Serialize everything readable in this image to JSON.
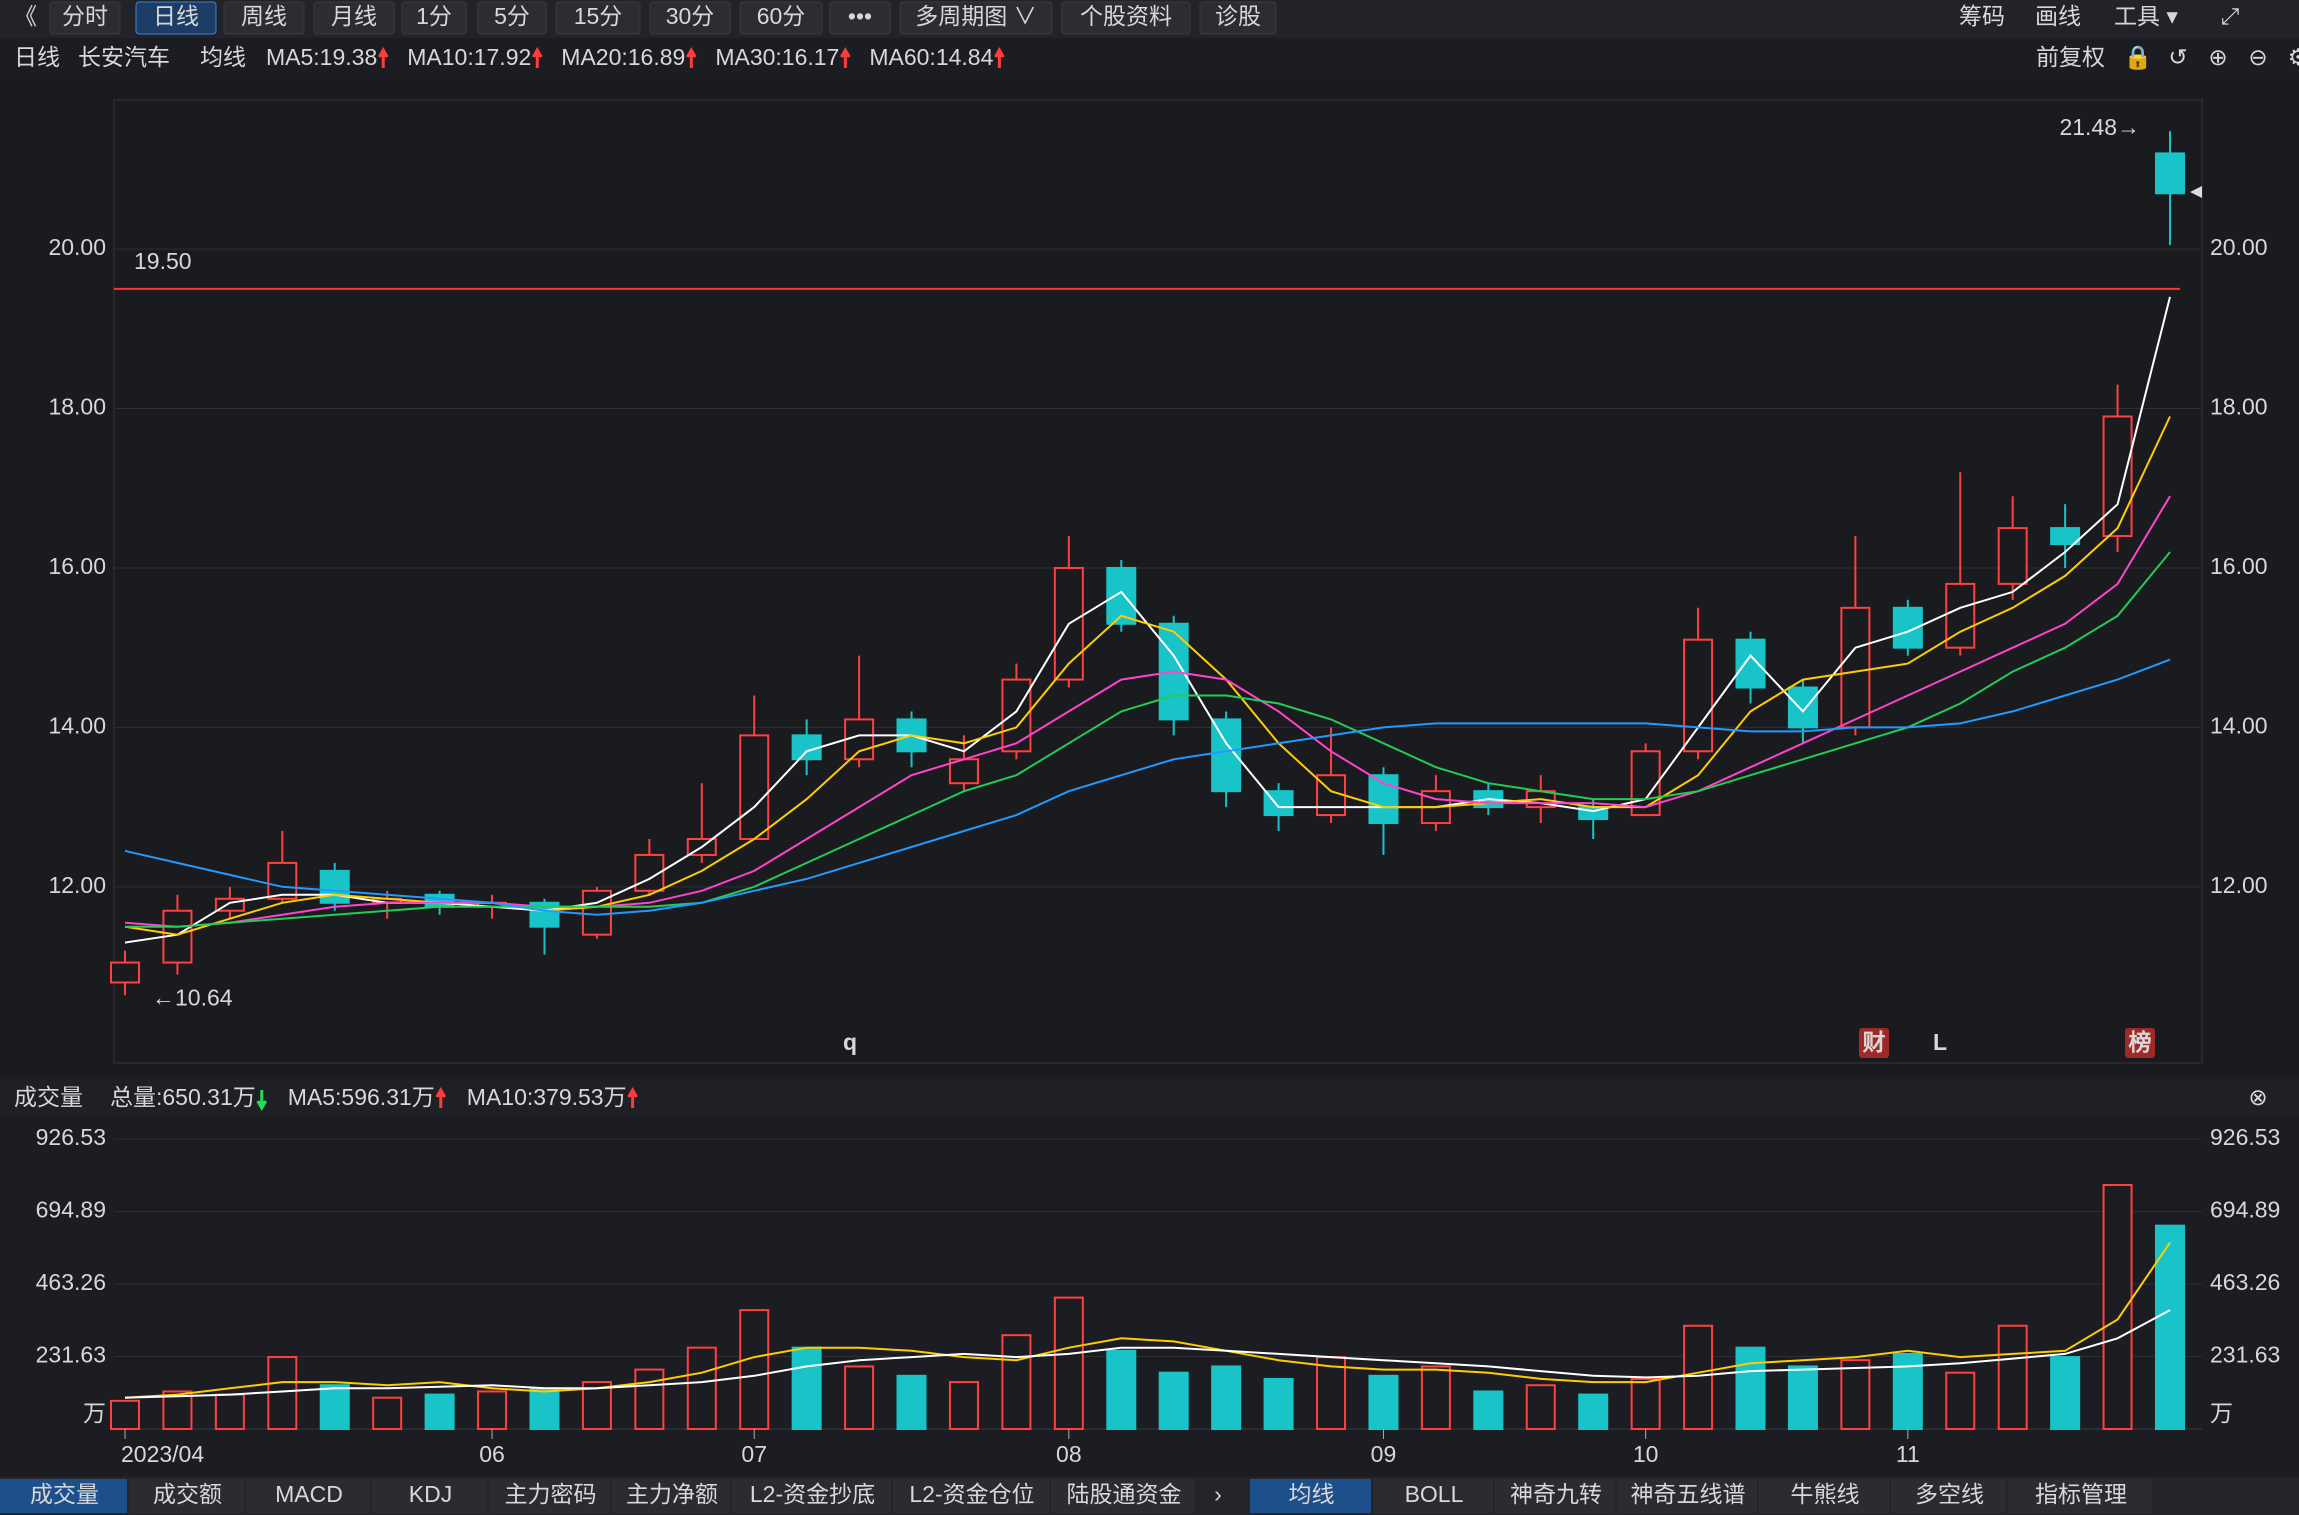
{
  "toolbar": {
    "buttons": [
      "《",
      "分时",
      "日线",
      "周线",
      "月线",
      "1分",
      "5分",
      "15分",
      "30分",
      "60分",
      "•••",
      "多周期图 ∨",
      "个股资料",
      "诊股"
    ],
    "right": [
      "筹码",
      "画线",
      "工具 ▾"
    ]
  },
  "header": {
    "period": "日线",
    "name": "长安汽车",
    "ma_label": "均线",
    "ma_items": [
      "MA5:19.38",
      "MA10:17.92",
      "MA20:16.89",
      "MA30:16.17",
      "MA60:14.84"
    ],
    "adjust": "前复权"
  },
  "chart_data": [
    {
      "type": "candlestick",
      "up_color": "#ff4040",
      "down_color": "#18c4c8",
      "ohlc": [
        [
          10.8,
          11.2,
          10.64,
          11.05
        ],
        [
          11.05,
          11.9,
          10.9,
          11.7
        ],
        [
          11.7,
          12.0,
          11.6,
          11.85
        ],
        [
          11.85,
          12.7,
          11.8,
          12.3
        ],
        [
          12.2,
          12.3,
          11.7,
          11.8
        ],
        [
          11.8,
          11.95,
          11.6,
          11.85
        ],
        [
          11.9,
          11.95,
          11.65,
          11.75
        ],
        [
          11.75,
          11.9,
          11.6,
          11.8
        ],
        [
          11.8,
          11.85,
          11.15,
          11.5
        ],
        [
          11.4,
          12.0,
          11.35,
          11.95
        ],
        [
          11.95,
          12.6,
          11.9,
          12.4
        ],
        [
          12.4,
          13.3,
          12.3,
          12.6
        ],
        [
          12.6,
          14.4,
          12.6,
          13.9
        ],
        [
          13.9,
          14.1,
          13.4,
          13.6
        ],
        [
          13.6,
          14.9,
          13.5,
          14.1
        ],
        [
          14.1,
          14.2,
          13.5,
          13.7
        ],
        [
          13.3,
          13.9,
          13.2,
          13.6
        ],
        [
          13.7,
          14.8,
          13.6,
          14.6
        ],
        [
          14.6,
          16.4,
          14.5,
          16.0
        ],
        [
          16.0,
          16.1,
          15.2,
          15.3
        ],
        [
          15.3,
          15.4,
          13.9,
          14.1
        ],
        [
          14.1,
          14.2,
          13.0,
          13.2
        ],
        [
          13.2,
          13.3,
          12.7,
          12.9
        ],
        [
          12.9,
          14.0,
          12.8,
          13.4
        ],
        [
          13.4,
          13.5,
          12.4,
          12.8
        ],
        [
          12.8,
          13.4,
          12.7,
          13.2
        ],
        [
          13.2,
          13.3,
          12.9,
          13.0
        ],
        [
          13.0,
          13.4,
          12.8,
          13.2
        ],
        [
          13.0,
          13.1,
          12.6,
          12.85
        ],
        [
          12.9,
          13.8,
          12.9,
          13.7
        ],
        [
          13.7,
          15.5,
          13.6,
          15.1
        ],
        [
          15.1,
          15.2,
          14.3,
          14.5
        ],
        [
          14.5,
          14.6,
          13.8,
          14.0
        ],
        [
          14.0,
          16.4,
          13.9,
          15.5
        ],
        [
          15.5,
          15.6,
          14.9,
          15.0
        ],
        [
          15.0,
          17.2,
          14.9,
          15.8
        ],
        [
          15.8,
          16.9,
          15.6,
          16.5
        ],
        [
          16.5,
          16.8,
          16.0,
          16.3
        ],
        [
          16.4,
          18.3,
          16.2,
          17.9
        ],
        [
          21.2,
          21.48,
          20.05,
          20.7
        ]
      ],
      "lines": [
        {
          "color": "#ffffff",
          "values": [
            11.3,
            11.4,
            11.8,
            11.9,
            11.9,
            11.8,
            11.8,
            11.75,
            11.7,
            11.8,
            12.1,
            12.5,
            13.0,
            13.7,
            13.9,
            13.9,
            13.7,
            14.2,
            15.3,
            15.7,
            14.9,
            13.8,
            13.0,
            13.0,
            13.0,
            13.0,
            13.1,
            13.05,
            12.95,
            13.1,
            14.0,
            14.9,
            14.2,
            15.0,
            15.2,
            15.5,
            15.7,
            16.2,
            16.8,
            19.4
          ]
        },
        {
          "color": "#ffcc00",
          "values": [
            11.5,
            11.4,
            11.6,
            11.8,
            11.9,
            11.85,
            11.8,
            11.8,
            11.7,
            11.75,
            11.9,
            12.2,
            12.6,
            13.1,
            13.7,
            13.9,
            13.8,
            14.0,
            14.8,
            15.4,
            15.2,
            14.6,
            13.8,
            13.2,
            13.0,
            13.0,
            13.05,
            13.1,
            13.0,
            13.0,
            13.4,
            14.2,
            14.6,
            14.7,
            14.8,
            15.2,
            15.5,
            15.9,
            16.5,
            17.9
          ]
        },
        {
          "color": "#ff44cc",
          "values": [
            11.55,
            11.5,
            11.55,
            11.65,
            11.75,
            11.8,
            11.8,
            11.8,
            11.75,
            11.75,
            11.8,
            11.95,
            12.2,
            12.6,
            13.0,
            13.4,
            13.6,
            13.8,
            14.2,
            14.6,
            14.7,
            14.6,
            14.2,
            13.7,
            13.3,
            13.1,
            13.05,
            13.05,
            13.05,
            13.0,
            13.2,
            13.5,
            13.8,
            14.1,
            14.4,
            14.7,
            15.0,
            15.3,
            15.8,
            16.9
          ]
        },
        {
          "color": "#22cc55",
          "values": [
            11.5,
            11.5,
            11.55,
            11.6,
            11.65,
            11.7,
            11.75,
            11.75,
            11.75,
            11.75,
            11.75,
            11.8,
            12.0,
            12.3,
            12.6,
            12.9,
            13.2,
            13.4,
            13.8,
            14.2,
            14.4,
            14.4,
            14.3,
            14.1,
            13.8,
            13.5,
            13.3,
            13.2,
            13.1,
            13.1,
            13.2,
            13.4,
            13.6,
            13.8,
            14.0,
            14.3,
            14.7,
            15.0,
            15.4,
            16.2
          ]
        },
        {
          "color": "#2299ff",
          "values": [
            12.45,
            12.3,
            12.15,
            12.0,
            11.95,
            11.9,
            11.85,
            11.8,
            11.7,
            11.65,
            11.7,
            11.8,
            11.95,
            12.1,
            12.3,
            12.5,
            12.7,
            12.9,
            13.2,
            13.4,
            13.6,
            13.7,
            13.8,
            13.9,
            14.0,
            14.05,
            14.05,
            14.05,
            14.05,
            14.05,
            14.0,
            13.95,
            13.95,
            14.0,
            14.0,
            14.05,
            14.2,
            14.4,
            14.6,
            14.85
          ]
        }
      ],
      "ylim": [
        9.79,
        21.87
      ],
      "yticks": [
        {
          "value": 12,
          "label": "12.00"
        },
        {
          "value": 14,
          "label": "14.00"
        },
        {
          "value": 16,
          "label": "16.00"
        },
        {
          "value": 18,
          "label": "18.00"
        },
        {
          "value": 20,
          "label": "20.00"
        }
      ],
      "grid": true,
      "price_line": {
        "value": 19.5,
        "label": "19.50",
        "color": "#ff3333"
      },
      "high_label": {
        "value": 21.48,
        "label": "21.48→"
      },
      "low_label": {
        "value": 10.64,
        "label": "←10.64"
      },
      "events": [
        "q",
        "财",
        "L",
        "榜"
      ]
    },
    {
      "type": "volume",
      "title": "成交量",
      "legend": [
        "总量:650.31万",
        "MA5:596.31万",
        "MA10:379.53万"
      ],
      "categories": [
        "2023/04",
        null,
        null,
        null,
        null,
        null,
        null,
        "06",
        null,
        null,
        null,
        null,
        "07",
        null,
        null,
        null,
        null,
        null,
        "08",
        null,
        null,
        null,
        null,
        null,
        "09",
        null,
        null,
        null,
        null,
        "10",
        null,
        null,
        null,
        null,
        "11",
        null,
        null,
        null,
        null,
        null
      ],
      "values": [
        90,
        120,
        110,
        230,
        140,
        100,
        110,
        120,
        130,
        150,
        190,
        260,
        380,
        260,
        200,
        170,
        150,
        300,
        420,
        250,
        180,
        200,
        160,
        230,
        170,
        200,
        120,
        140,
        110,
        160,
        330,
        260,
        200,
        220,
        240,
        180,
        330,
        230,
        780,
        650
      ],
      "lines": [
        {
          "color": "#ffcc00",
          "values": [
            100,
            110,
            130,
            150,
            150,
            140,
            150,
            130,
            120,
            130,
            150,
            180,
            230,
            260,
            260,
            250,
            230,
            220,
            260,
            290,
            280,
            250,
            220,
            200,
            190,
            190,
            180,
            160,
            150,
            150,
            180,
            210,
            220,
            230,
            250,
            230,
            240,
            250,
            350,
            596
          ]
        },
        {
          "color": "#ffffff",
          "values": [
            100,
            105,
            110,
            120,
            130,
            130,
            135,
            140,
            130,
            130,
            140,
            150,
            170,
            200,
            220,
            230,
            240,
            230,
            240,
            260,
            260,
            250,
            240,
            230,
            220,
            210,
            200,
            185,
            170,
            165,
            170,
            185,
            190,
            195,
            200,
            210,
            225,
            240,
            290,
            380
          ]
        }
      ],
      "ylim": [
        0,
        975
      ],
      "yticks": [
        231.63,
        463.26,
        694.89,
        926.53
      ],
      "unit": "万",
      "grid": true
    }
  ],
  "bottom_tabs": {
    "left": [
      "成交量",
      "成交额",
      "MACD",
      "KDJ",
      "主力密码",
      "主力净额",
      "L2-资金抄底",
      "L2-资金仓位",
      "陆股通资金"
    ],
    "right": [
      "均线",
      "BOLL",
      "神奇九转",
      "神奇五线谱",
      "牛熊线",
      "多空线",
      "指标管理"
    ]
  }
}
